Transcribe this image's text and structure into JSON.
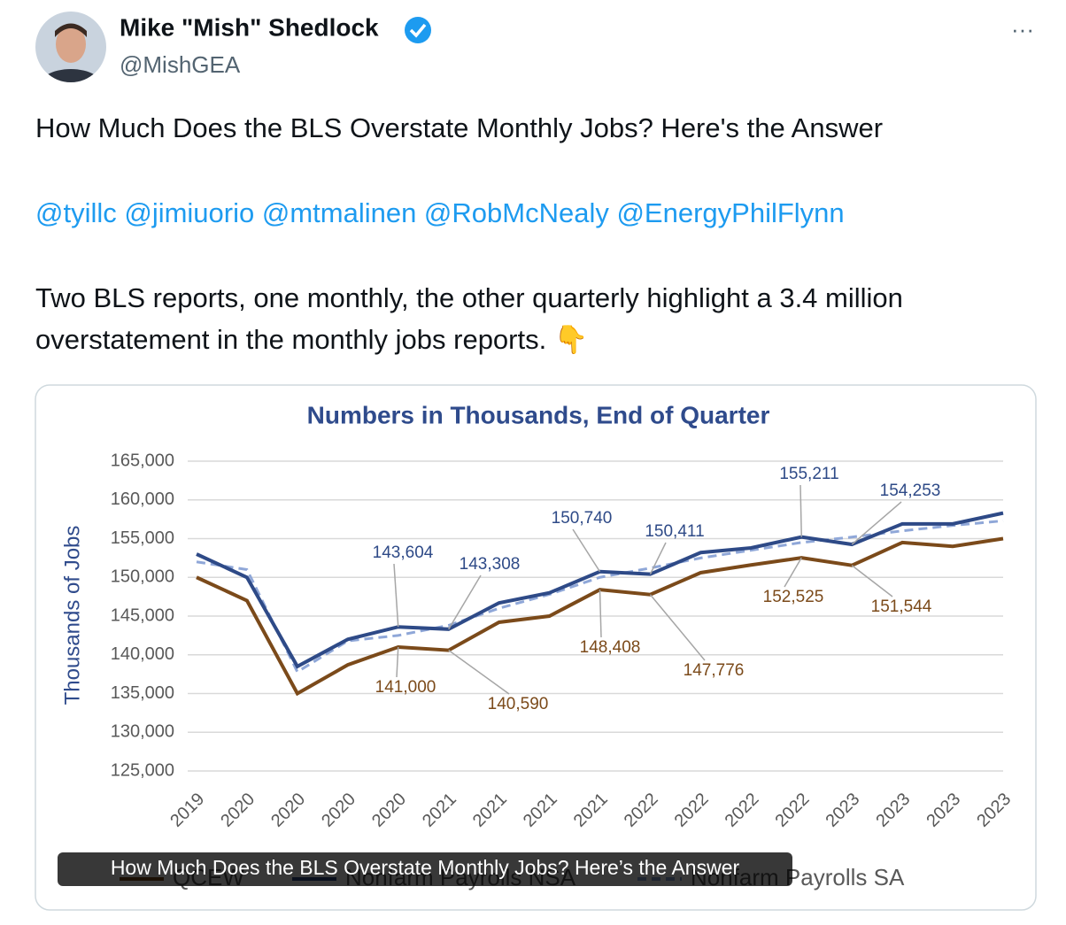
{
  "tweet": {
    "author": "Mike \"Mish\" Shedlock",
    "handle": "@MishGEA",
    "more": "···",
    "headline": "How Much Does the BLS Overstate Monthly Jobs? Here's the Answer",
    "mentions": "@tyillc @jimiuorio @mtmalinen @RobMcNealy @EnergyPhilFlynn",
    "body_lines": [
      "Two BLS reports, one monthly, the other quarterly highlight a 3.4 million",
      "overstatement in the monthly jobs reports. 👇"
    ],
    "image_caption": "How Much Does the BLS Overstate Monthly Jobs? Here’s the Answer"
  },
  "chart_data": {
    "type": "line",
    "subtitle": "Numbers in Thousands, End of Quarter",
    "y_label": "Thousands of Jobs",
    "categories": [
      "2019",
      "2020",
      "2020",
      "2020",
      "2020",
      "2021",
      "2021",
      "2021",
      "2021",
      "2022",
      "2022",
      "2022",
      "2022",
      "2023",
      "2023",
      "2023",
      "2023"
    ],
    "ylim": [
      125000,
      165000
    ],
    "yticks": [
      {
        "value": 125000,
        "label": "125,000"
      },
      {
        "value": 130000,
        "label": "130,000"
      },
      {
        "value": 135000,
        "label": "135,000"
      },
      {
        "value": 140000,
        "label": "140,000"
      },
      {
        "value": 145000,
        "label": "145,000"
      },
      {
        "value": 150000,
        "label": "150,000"
      },
      {
        "value": 155000,
        "label": "155,000"
      },
      {
        "value": 160000,
        "label": "160,000"
      },
      {
        "value": 165000,
        "label": "165,000"
      }
    ],
    "grid": true,
    "series": [
      {
        "name": "QCEW",
        "color": "#7b4a1a",
        "dashed": false,
        "values": [
          150000,
          147000,
          135000,
          138700,
          141000,
          140590,
          144200,
          145000,
          148408,
          147776,
          150600,
          151600,
          152525,
          151544,
          154500,
          154000,
          155000
        ],
        "value_labels": [
          null,
          null,
          null,
          null,
          "141,000",
          "140,590",
          null,
          null,
          "148,408",
          "147,776",
          null,
          null,
          "152,525",
          "151,544",
          null,
          null,
          null
        ]
      },
      {
        "name": "Nonfarm Payrolls NSA",
        "color": "#2e4a87",
        "dashed": false,
        "values": [
          153000,
          150000,
          138500,
          142000,
          143604,
          143308,
          146700,
          148000,
          150740,
          150411,
          153200,
          153800,
          155211,
          154253,
          156900,
          156900,
          158300
        ],
        "value_labels": [
          null,
          null,
          null,
          null,
          "143,604",
          "143,308",
          null,
          null,
          "150,740",
          "150,411",
          null,
          null,
          "155,211",
          "154,253",
          null,
          null,
          null
        ]
      },
      {
        "name": "Nonfarm Payrolls SA",
        "color": "#8fa7d8",
        "dashed": true,
        "values": [
          152000,
          151000,
          137800,
          141800,
          142500,
          143800,
          146000,
          147800,
          150000,
          151200,
          152500,
          153500,
          154500,
          155200,
          156000,
          156700,
          157300
        ]
      }
    ]
  }
}
